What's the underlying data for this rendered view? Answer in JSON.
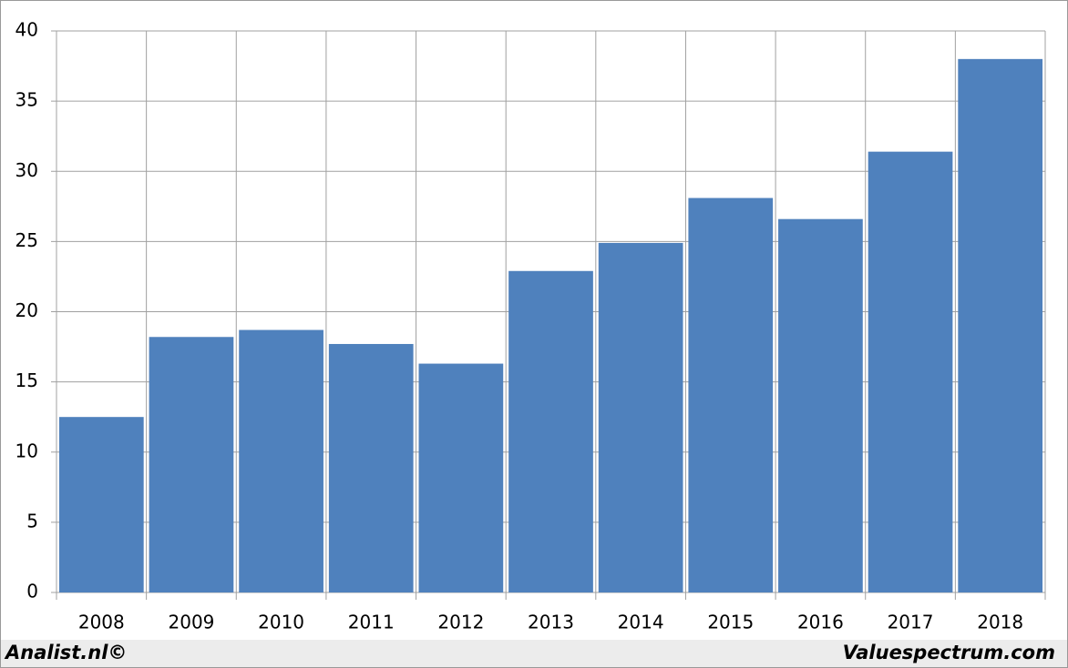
{
  "chart_data": {
    "type": "bar",
    "categories": [
      "2008",
      "2009",
      "2010",
      "2011",
      "2012",
      "2013",
      "2014",
      "2015",
      "2016",
      "2017",
      "2018"
    ],
    "values": [
      12.5,
      18.2,
      18.7,
      17.7,
      16.3,
      22.9,
      24.9,
      28.1,
      26.6,
      31.4,
      38.0
    ],
    "color": "#4f81bd",
    "ylim": [
      0,
      40
    ],
    "yticks": [
      0,
      5,
      10,
      15,
      20,
      25,
      30,
      35,
      40
    ],
    "grid": true
  },
  "footer": {
    "left": "Analist.nl©",
    "right": "Valuespectrum.com"
  }
}
